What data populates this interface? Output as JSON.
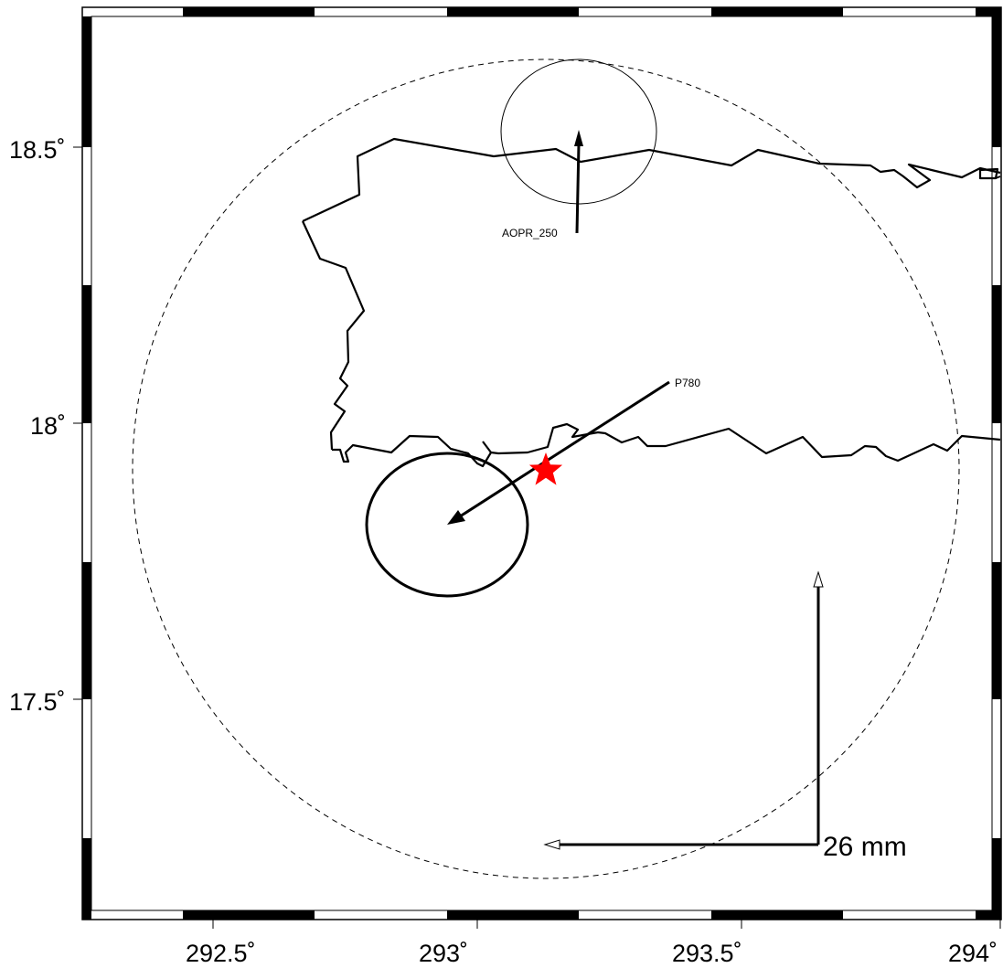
{
  "map": {
    "x_ticks": [
      "292.5˚",
      "293˚",
      "293.5˚",
      "294˚"
    ],
    "y_ticks": [
      "18.5˚",
      "18˚",
      "17.5˚"
    ],
    "stations": [
      {
        "id": "AOPR_250",
        "label": "AOPR_250",
        "lon": 293.24,
        "lat": 18.35
      },
      {
        "id": "P780",
        "label": "P780",
        "lon": 293.42,
        "lat": 18.08
      }
    ],
    "epicenter": {
      "symbol": "star",
      "lon": 293.19,
      "lat": 17.92,
      "color": "#ff0000"
    },
    "scale": {
      "label": "26 mm"
    },
    "colors": {
      "line": "#000000",
      "epicenter": "#ff0000",
      "background": "#ffffff"
    }
  }
}
